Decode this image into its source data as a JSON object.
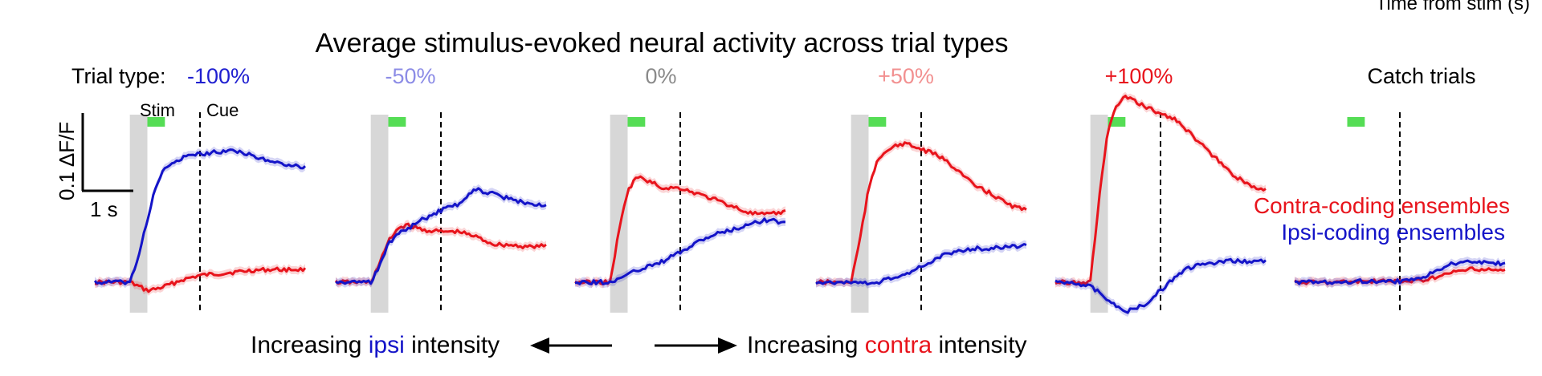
{
  "corner_text": "Time from stim (s)",
  "title": "Average stimulus-evoked neural activity across trial types",
  "trial_type_prefix": "Trial type:",
  "stim_label": "Stim",
  "cue_label": "Cue",
  "scalebar": {
    "y_label": "0.1 ΔF/F",
    "x_label": "1 s"
  },
  "legend": {
    "contra": {
      "label": "Contra-coding ensembles",
      "color": "#e8141c"
    },
    "ipsi": {
      "label": "Ipsi-coding ensembles",
      "color": "#1414c8"
    }
  },
  "arrows": {
    "left": {
      "pre": "Increasing ",
      "key": "ipsi",
      "post": " intensity"
    },
    "right": {
      "pre": "Increasing ",
      "key": "contra",
      "post": " intensity"
    }
  },
  "colors": {
    "ipsi_text": "#1414c8",
    "contra_text": "#e8141c",
    "stim_shade": "#d7d7d7",
    "cue_bar": "#55dd55"
  },
  "chart_data": [
    {
      "type": "line",
      "header": "-100%",
      "header_color": "#1f1fd0",
      "stim_shade": true,
      "x": [
        -1,
        -0.5,
        0,
        0.25,
        0.5,
        0.75,
        1,
        1.5,
        2,
        2.5,
        3,
        3.5,
        4,
        4.5,
        5
      ],
      "series": [
        {
          "name": "Contra-coding ensembles",
          "color": "#e8141c",
          "values": [
            0.0,
            0.0,
            0.0,
            -0.005,
            -0.01,
            -0.008,
            -0.005,
            0.003,
            0.008,
            0.01,
            0.012,
            0.014,
            0.015,
            0.015,
            0.015
          ]
        },
        {
          "name": "Ipsi-coding ensembles",
          "color": "#1414c8",
          "values": [
            0.0,
            0.0,
            0.0,
            0.03,
            0.075,
            0.115,
            0.135,
            0.148,
            0.152,
            0.155,
            0.157,
            0.15,
            0.143,
            0.14,
            0.136
          ]
        }
      ]
    },
    {
      "type": "line",
      "header": "-50%",
      "header_color": "#8c8ce6",
      "stim_shade": true,
      "x": [
        -1,
        -0.5,
        0,
        0.25,
        0.5,
        0.75,
        1,
        1.5,
        2,
        2.5,
        3,
        3.5,
        4,
        4.5,
        5
      ],
      "series": [
        {
          "name": "Contra-coding ensembles",
          "color": "#e8141c",
          "values": [
            0.0,
            0.0,
            0.0,
            0.022,
            0.048,
            0.063,
            0.068,
            0.062,
            0.06,
            0.06,
            0.054,
            0.045,
            0.044,
            0.042,
            0.043
          ]
        },
        {
          "name": "Ipsi-coding ensembles",
          "color": "#1414c8",
          "values": [
            0.0,
            0.0,
            0.0,
            0.02,
            0.045,
            0.058,
            0.062,
            0.075,
            0.085,
            0.093,
            0.11,
            0.105,
            0.098,
            0.094,
            0.09
          ]
        }
      ]
    },
    {
      "type": "line",
      "header": "0%",
      "header_color": "#8a8a8a",
      "stim_shade": true,
      "x": [
        -1,
        -0.5,
        0,
        0.25,
        0.5,
        0.75,
        1,
        1.5,
        2,
        2.5,
        3,
        3.5,
        4,
        4.5,
        5
      ],
      "series": [
        {
          "name": "Contra-coding ensembles",
          "color": "#e8141c",
          "values": [
            0.0,
            0.0,
            0.0,
            0.06,
            0.108,
            0.125,
            0.122,
            0.112,
            0.112,
            0.105,
            0.098,
            0.09,
            0.082,
            0.08,
            0.084
          ]
        },
        {
          "name": "Ipsi-coding ensembles",
          "color": "#1414c8",
          "values": [
            0.0,
            0.0,
            0.0,
            0.004,
            0.009,
            0.014,
            0.018,
            0.025,
            0.035,
            0.048,
            0.057,
            0.062,
            0.07,
            0.074,
            0.07
          ]
        }
      ]
    },
    {
      "type": "line",
      "header": "+50%",
      "header_color": "#f29090",
      "stim_shade": true,
      "x": [
        -1,
        -0.5,
        0,
        0.25,
        0.5,
        0.75,
        1,
        1.5,
        2,
        2.5,
        3,
        3.5,
        4,
        4.5,
        5
      ],
      "series": [
        {
          "name": "Contra-coding ensembles",
          "color": "#e8141c",
          "values": [
            0.0,
            0.0,
            0.0,
            0.05,
            0.11,
            0.145,
            0.157,
            0.165,
            0.158,
            0.15,
            0.135,
            0.115,
            0.105,
            0.092,
            0.085
          ]
        },
        {
          "name": "Ipsi-coding ensembles",
          "color": "#1414c8",
          "values": [
            0.0,
            0.0,
            0.0,
            0.0,
            -0.002,
            0.0,
            0.003,
            0.008,
            0.018,
            0.03,
            0.036,
            0.04,
            0.04,
            0.042,
            0.043
          ]
        }
      ]
    },
    {
      "type": "line",
      "header": "+100%",
      "header_color": "#e8141c",
      "stim_shade": true,
      "x": [
        -1,
        -0.5,
        0,
        0.25,
        0.5,
        0.75,
        1,
        1.5,
        2,
        2.5,
        3,
        3.5,
        4,
        4.5,
        5
      ],
      "series": [
        {
          "name": "Contra-coding ensembles",
          "color": "#e8141c",
          "values": [
            0.0,
            0.0,
            0.0,
            0.1,
            0.18,
            0.21,
            0.22,
            0.21,
            0.2,
            0.192,
            0.17,
            0.15,
            0.13,
            0.115,
            0.11
          ]
        },
        {
          "name": "Ipsi-coding ensembles",
          "color": "#1414c8",
          "values": [
            0.0,
            0.0,
            -0.005,
            -0.012,
            -0.02,
            -0.03,
            -0.035,
            -0.028,
            -0.01,
            0.01,
            0.02,
            0.022,
            0.025,
            0.025,
            0.025
          ]
        }
      ]
    },
    {
      "type": "line",
      "header": "Catch trials",
      "header_color": "#000000",
      "stim_shade": false,
      "x": [
        -1,
        -0.5,
        0,
        0.25,
        0.5,
        0.75,
        1,
        1.5,
        2,
        2.5,
        3,
        3.5,
        4,
        4.5,
        5
      ],
      "series": [
        {
          "name": "Contra-coding ensembles",
          "color": "#e8141c",
          "values": [
            0.0,
            0.0,
            0.0,
            0.0,
            0.001,
            0.001,
            0.001,
            0.001,
            0.001,
            0.002,
            0.005,
            0.012,
            0.015,
            0.015,
            0.014
          ]
        },
        {
          "name": "Ipsi-coding ensembles",
          "color": "#1414c8",
          "values": [
            0.0,
            0.0,
            0.0,
            0.0,
            0.0,
            0.001,
            0.001,
            0.001,
            0.001,
            0.003,
            0.012,
            0.022,
            0.025,
            0.024,
            0.022
          ]
        }
      ]
    }
  ]
}
